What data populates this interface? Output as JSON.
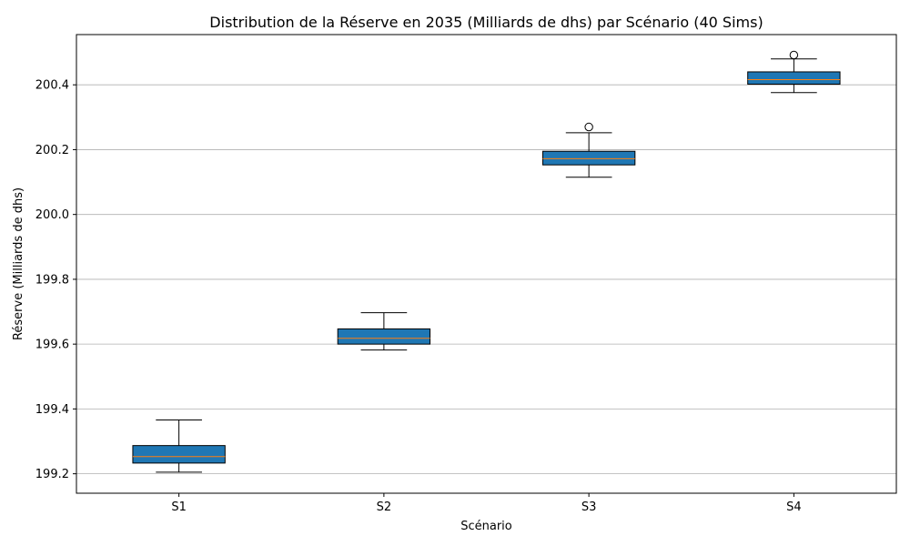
{
  "chart_data": {
    "type": "box",
    "title": "Distribution de la Réserve en 2035 (Milliards de dhs) par Scénario (40 Sims)",
    "xlabel": "Scénario",
    "ylabel": "Réserve (Milliards de dhs)",
    "ylim": [
      199.14,
      200.555
    ],
    "yticks": [
      199.2,
      199.4,
      199.6,
      199.8,
      200.0,
      200.2,
      200.4
    ],
    "ytick_labels": [
      "199.2",
      "199.4",
      "199.6",
      "199.8",
      "200.0",
      "200.2",
      "200.4"
    ],
    "grid": "y",
    "categories": [
      "S1",
      "S2",
      "S3",
      "S4"
    ],
    "boxes": [
      {
        "name": "S1",
        "whislo": 199.205,
        "q1": 199.233,
        "median": 199.253,
        "q3": 199.287,
        "whishi": 199.366,
        "fliers": []
      },
      {
        "name": "S2",
        "whislo": 199.582,
        "q1": 199.6,
        "median": 199.618,
        "q3": 199.647,
        "whishi": 199.697,
        "fliers": []
      },
      {
        "name": "S3",
        "whislo": 200.115,
        "q1": 200.153,
        "median": 200.172,
        "q3": 200.195,
        "whishi": 200.252,
        "fliers": [
          200.27
        ]
      },
      {
        "name": "S4",
        "whislo": 200.376,
        "q1": 200.402,
        "median": 200.416,
        "q3": 200.44,
        "whishi": 200.48,
        "fliers": [
          200.492
        ]
      }
    ],
    "colors": {
      "box_fill": "#1f77b4",
      "median": "#ff7f0e",
      "grid": "#b0b0b0",
      "line": "#000000"
    }
  }
}
